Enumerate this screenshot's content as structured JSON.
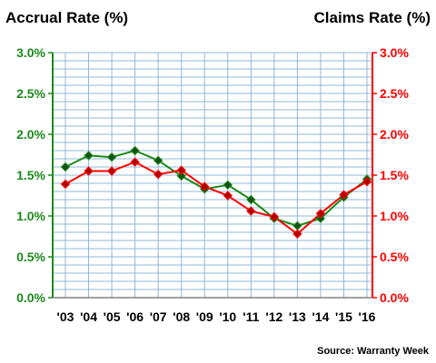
{
  "chart_data": {
    "type": "line",
    "left_title": "Accrual Rate (%)",
    "right_title": "Claims Rate (%)",
    "source": "Source: Warranty Week",
    "categories": [
      "'03",
      "'04",
      "'05",
      "'06",
      "'07",
      "'08",
      "'09",
      "'10",
      "'11",
      "'12",
      "'13",
      "'14",
      "'15",
      "'16"
    ],
    "y_ticks_left": [
      "0.0%",
      "0.5%",
      "1.0%",
      "1.5%",
      "2.0%",
      "2.5%",
      "3.0%"
    ],
    "y_ticks_right": [
      "0.0%",
      "0.5%",
      "1.0%",
      "1.5%",
      "2.0%",
      "2.5%",
      "3.0%"
    ],
    "ylim": [
      0,
      3.0
    ],
    "grid": true,
    "series": [
      {
        "key": "accrual",
        "axis": "left",
        "color": "#1a8a1a",
        "marker_color": "#145214",
        "values": [
          1.6,
          1.74,
          1.72,
          1.8,
          1.68,
          1.49,
          1.33,
          1.38,
          1.2,
          0.97,
          0.88,
          0.97,
          1.23,
          1.45
        ]
      },
      {
        "key": "claims",
        "axis": "right",
        "color": "#ff0000",
        "marker_color": "#b00000",
        "values": [
          1.39,
          1.55,
          1.55,
          1.66,
          1.51,
          1.56,
          1.36,
          1.25,
          1.06,
          0.99,
          0.78,
          1.03,
          1.26,
          1.42
        ]
      }
    ],
    "colors": {
      "left_axis": "#1a8a1a",
      "right_axis": "#ff0000",
      "grid": "#8fb8d8"
    }
  }
}
